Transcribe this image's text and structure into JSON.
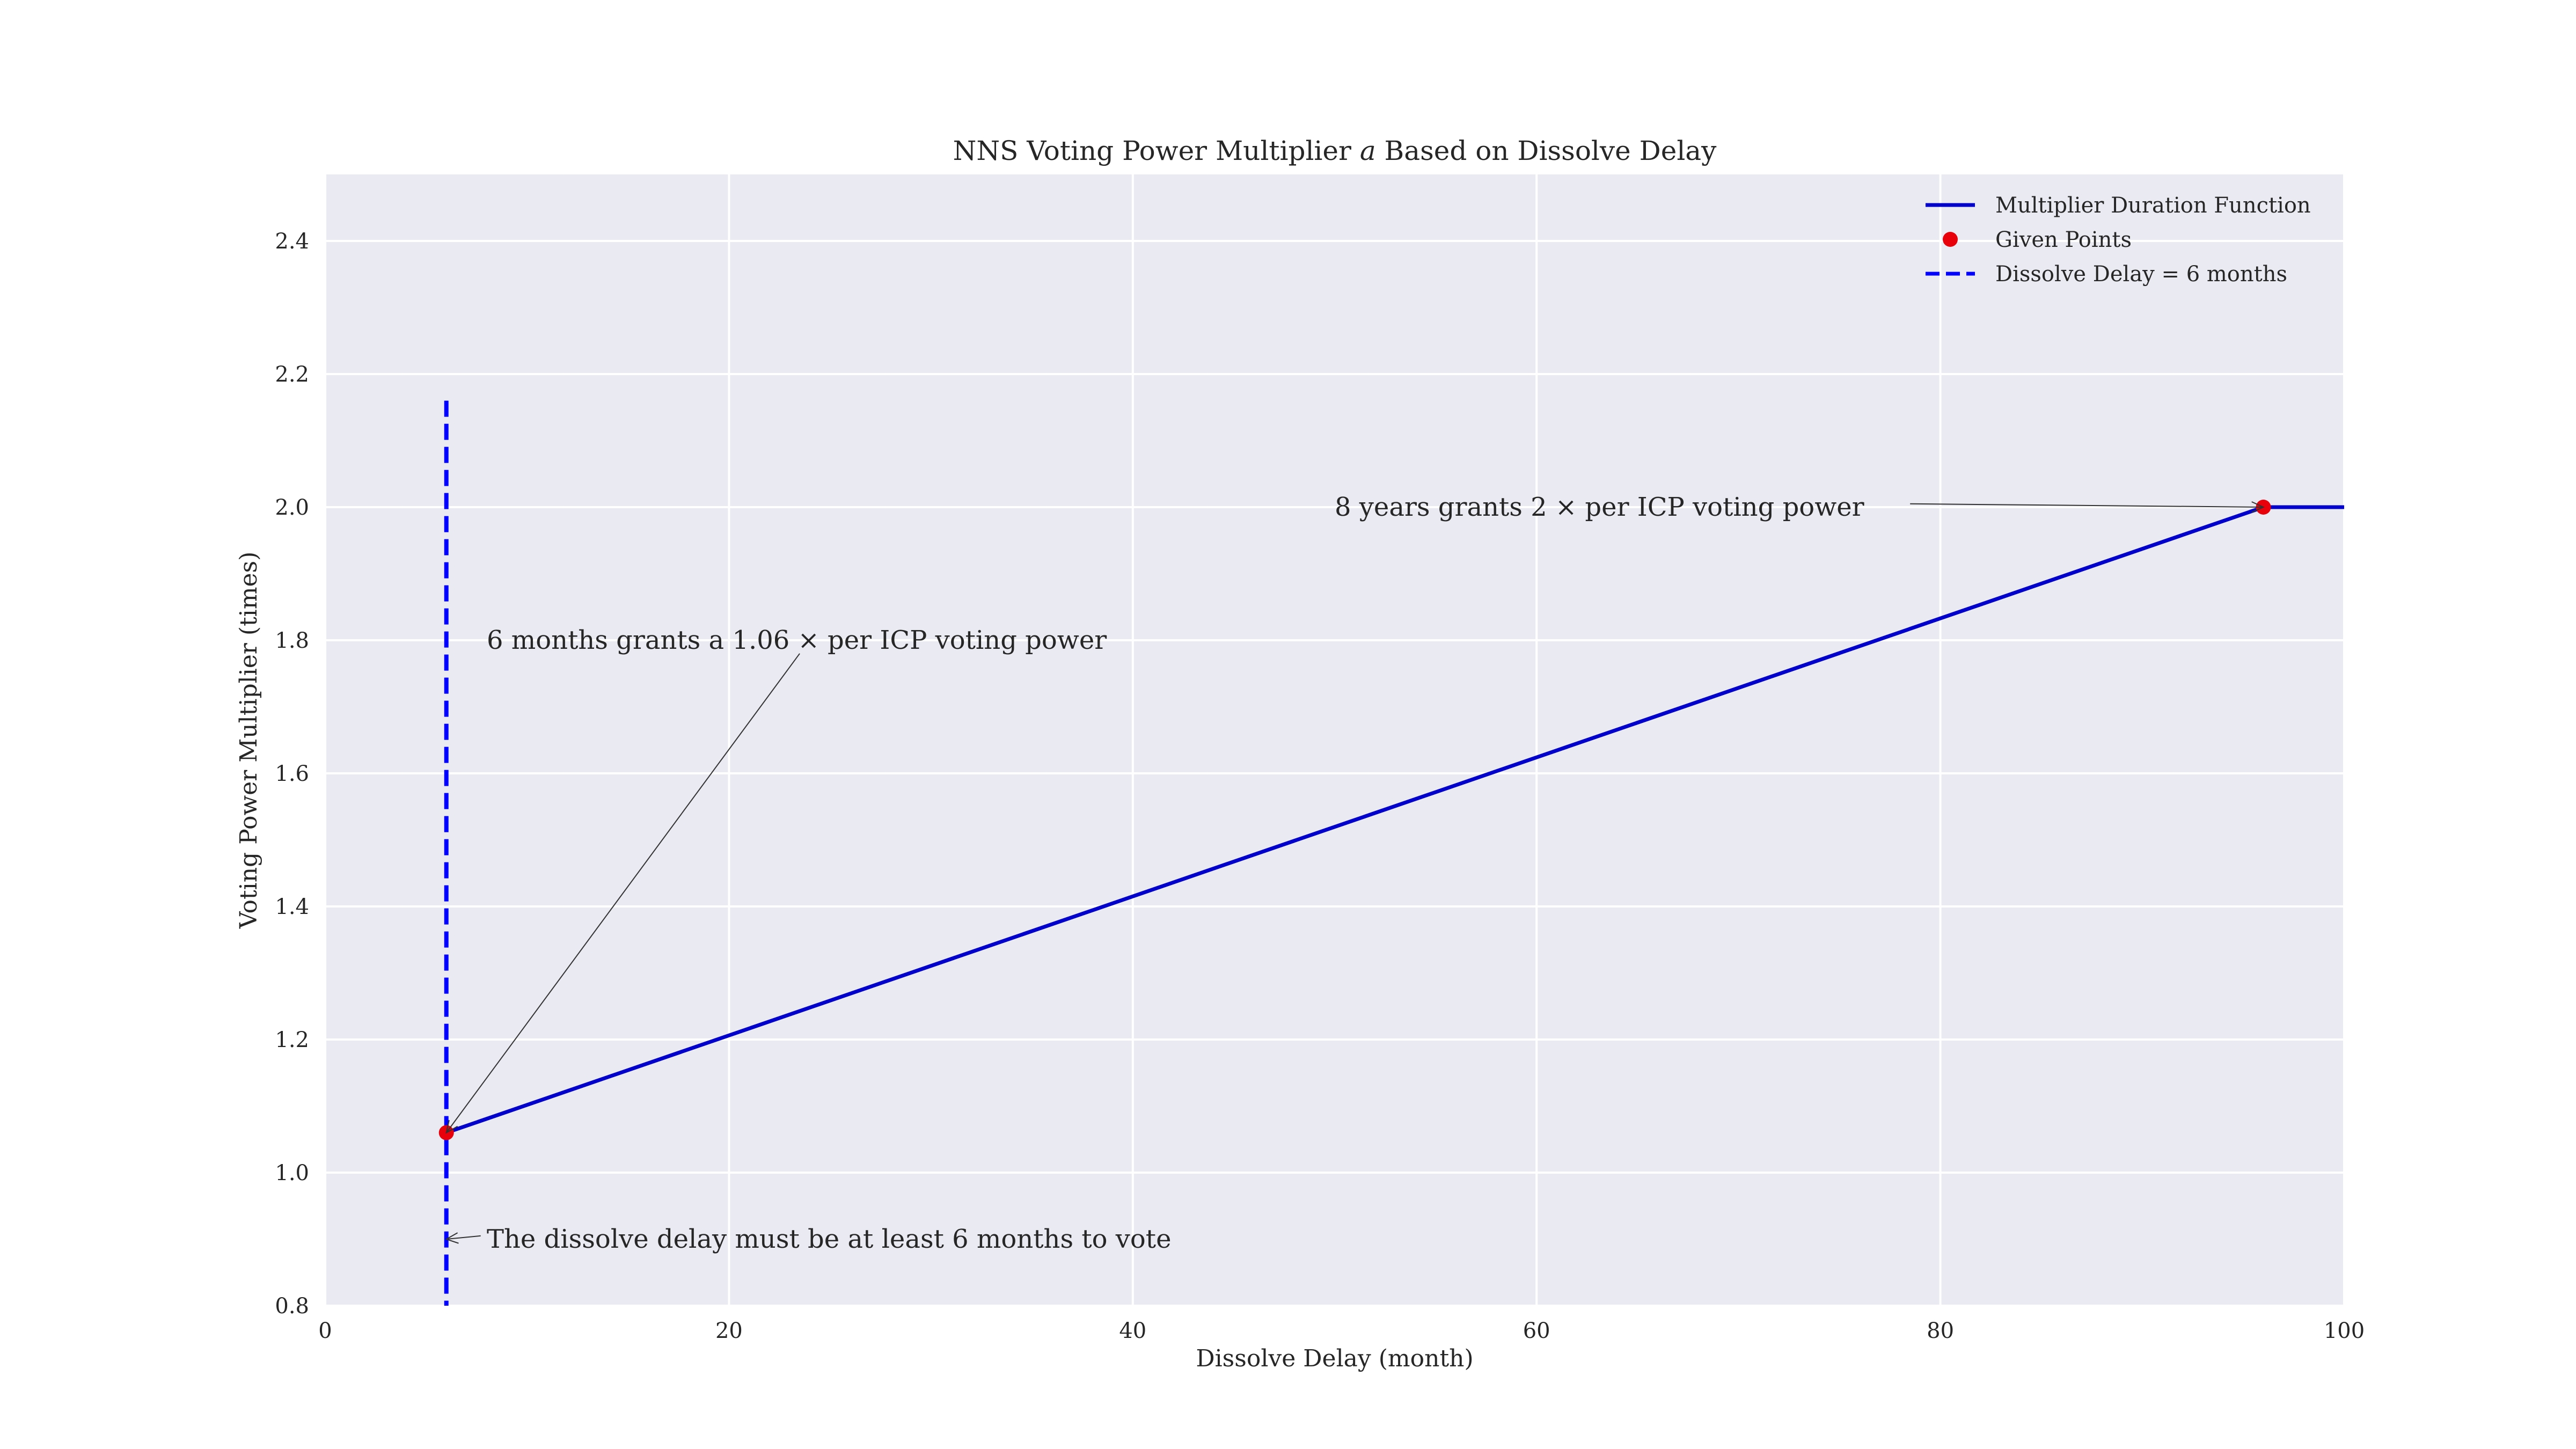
{
  "chart_data": {
    "type": "line",
    "title": "NNS Voting Power Multiplier a Based on Dissolve Delay",
    "title_parts": {
      "before": "NNS Voting Power Multiplier ",
      "symbol": "a",
      "after": " Based on Dissolve Delay"
    },
    "xlabel": "Dissolve Delay (month)",
    "ylabel": "Voting Power Multiplier (times)",
    "xlim": [
      0,
      100
    ],
    "ylim": [
      0.8,
      2.5
    ],
    "xticks": [
      0,
      20,
      40,
      60,
      80,
      100
    ],
    "yticks": [
      0.8,
      1.0,
      1.2,
      1.4,
      1.6,
      1.8,
      2.0,
      2.2,
      2.4
    ],
    "grid": true,
    "legend_position": "top-right",
    "colors": {
      "plot_background": "#eaeaf2",
      "grid": "#ffffff",
      "line": "#0000cc",
      "points": "#e8000b",
      "threshold": "#0000ff"
    },
    "series": [
      {
        "name": "Multiplier Duration Function",
        "kind": "line",
        "x": [
          6,
          96,
          100
        ],
        "y": [
          1.06,
          2.0,
          2.0
        ]
      },
      {
        "name": "Given Points",
        "kind": "scatter",
        "x": [
          6,
          96
        ],
        "y": [
          1.06,
          2.0
        ]
      },
      {
        "name": "Dissolve Delay = 6 months",
        "kind": "vline",
        "x": 6,
        "y_range": [
          0.8,
          2.16
        ]
      }
    ],
    "annotations": [
      {
        "text": "6 months grants a 1.06 × per ICP voting power",
        "xy": [
          6,
          1.06
        ],
        "text_xy": [
          8,
          1.8
        ],
        "arrow_from": [
          23.5,
          1.78
        ]
      },
      {
        "text": "8 years grants 2 × per ICP voting power",
        "xy": [
          96,
          2.0
        ],
        "text_xy": [
          50,
          2.0
        ],
        "arrow_from": [
          78.5,
          2.005
        ]
      },
      {
        "text": "The dissolve delay must be at least 6 months to vote",
        "xy": [
          6,
          0.9
        ],
        "text_xy": [
          8,
          0.9
        ],
        "arrow_from": [
          7.7,
          0.905
        ]
      }
    ]
  }
}
